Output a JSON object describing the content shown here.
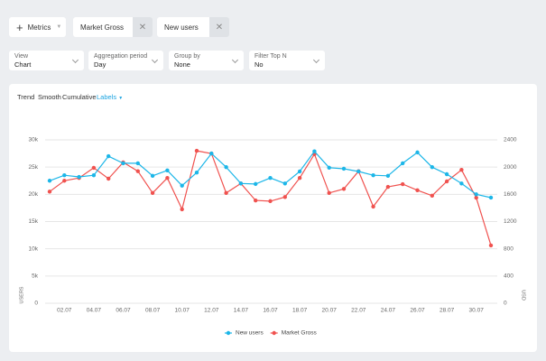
{
  "toolbar": {
    "metrics": "Metrics",
    "chips": [
      "Market Gross",
      "New users"
    ]
  },
  "filters": [
    {
      "label": "View",
      "value": "Chart"
    },
    {
      "label": "Aggregation period",
      "value": "Day"
    },
    {
      "label": "Group by",
      "value": "None"
    },
    {
      "label": "Filter Top N",
      "value": "No"
    }
  ],
  "tabs": [
    "Trend",
    "Smooth",
    "Cumulative",
    "Labels"
  ],
  "chart_data": {
    "type": "line",
    "categories": [
      null,
      "02.07",
      null,
      "04.07",
      null,
      "06.07",
      null,
      "08.07",
      null,
      "10.07",
      null,
      "12.07",
      null,
      "14.07",
      null,
      "16.07",
      null,
      "18.07",
      null,
      "20.07",
      null,
      "22.07",
      null,
      "24.07",
      null,
      "26.07",
      null,
      "28.07",
      null,
      "30.07",
      null
    ],
    "series": [
      {
        "name": "New users",
        "color": "#1cb6e8",
        "axis": "y",
        "values": [
          22500,
          23500,
          23200,
          23500,
          27000,
          25700,
          25700,
          23400,
          24400,
          21600,
          24000,
          27500,
          25000,
          22000,
          21900,
          23000,
          22000,
          24200,
          27900,
          24900,
          24700,
          24200,
          23500,
          23400,
          25700,
          27700,
          25000,
          23700,
          22000,
          20000,
          19400
        ]
      },
      {
        "name": "Market Gross",
        "color": "#f0524f",
        "axis": "y2",
        "values": [
          1640,
          1800,
          1840,
          1990,
          1830,
          2070,
          1940,
          1620,
          1840,
          1380,
          2240,
          2200,
          1620,
          1760,
          1510,
          1500,
          1560,
          1840,
          2190,
          1620,
          1680,
          1940,
          1420,
          1710,
          1750,
          1660,
          1580,
          1790,
          1960,
          1550,
          850
        ]
      }
    ],
    "ylim": [
      0,
      30000
    ],
    "yticks": [
      0,
      {
        "value": 5000,
        "label": "5k"
      },
      {
        "value": 10000,
        "label": "10k"
      },
      {
        "value": 15000,
        "label": "15k"
      },
      {
        "value": 20000,
        "label": "20k"
      },
      {
        "value": 25000,
        "label": "25k"
      },
      {
        "value": 30000,
        "label": "30k"
      }
    ],
    "y2lim": [
      0,
      2400
    ],
    "y2ticks": [
      0,
      400,
      800,
      1200,
      1600,
      2000,
      2400
    ],
    "ylabel": "USERS",
    "y2label": "USD",
    "grid": true,
    "legend": "bottom"
  }
}
